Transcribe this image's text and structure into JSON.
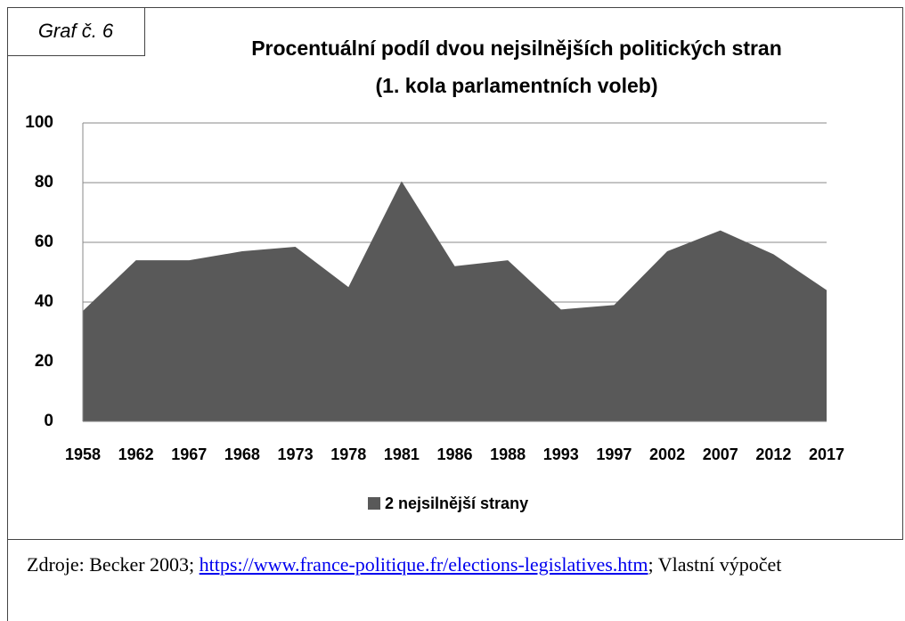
{
  "caption": "Graf č. 6",
  "chart_data": {
    "type": "area",
    "title": [
      "Procentuální podíl dvou nejsilnějších politických stran",
      "(1. kola parlamentních voleb)"
    ],
    "categories": [
      "1958",
      "1962",
      "1967",
      "1968",
      "1973",
      "1978",
      "1981",
      "1986",
      "1988",
      "1993",
      "1997",
      "2002",
      "2007",
      "2012",
      "2017"
    ],
    "series": [
      {
        "name": "2 nejsilnější strany",
        "color": "#595959",
        "values": [
          37,
          54,
          54,
          57,
          58.5,
          45,
          80.5,
          52,
          54,
          37.5,
          39,
          57,
          64,
          56,
          44
        ]
      }
    ],
    "ylim": [
      0,
      100
    ],
    "yticks": [
      0,
      20,
      40,
      60,
      80,
      100
    ],
    "grid": true,
    "legend": "bottom"
  },
  "source": {
    "before": "Zdroje: Becker 2003;",
    "link": "https://www.france-politique.fr/elections-legislatives.htm",
    "after": "; Vlastní výpočet"
  }
}
